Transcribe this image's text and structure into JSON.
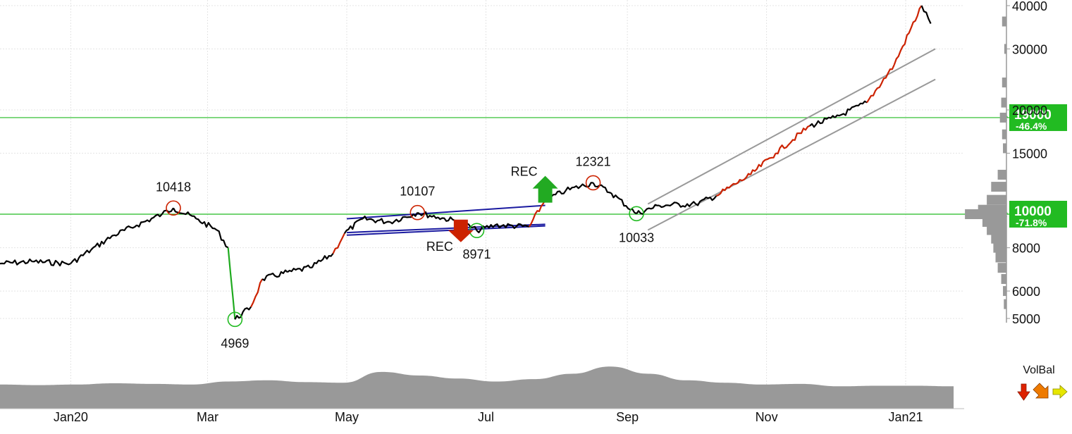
{
  "chart_data": {
    "type": "line",
    "title": "",
    "price_scale": "log",
    "ylim": [
      5000,
      40000
    ],
    "y_ticks": [
      {
        "label": "40000",
        "value": 40000
      },
      {
        "label": "30000",
        "value": 30000
      },
      {
        "label": "20000",
        "value": 20000
      },
      {
        "label": "15000",
        "value": 15000
      },
      {
        "label": "8000",
        "value": 8000
      },
      {
        "label": "6000",
        "value": 6000
      },
      {
        "label": "5000",
        "value": 5000
      }
    ],
    "x_ticks": [
      {
        "label": "Jan20",
        "date": "2020-01-01"
      },
      {
        "label": "Mar",
        "date": "2020-03-01"
      },
      {
        "label": "May",
        "date": "2020-05-01"
      },
      {
        "label": "Jul",
        "date": "2020-07-01"
      },
      {
        "label": "Sep",
        "date": "2020-09-01"
      },
      {
        "label": "Nov",
        "date": "2020-11-01"
      },
      {
        "label": "Jan21",
        "date": "2021-01-01"
      }
    ],
    "xlim": [
      "2019-12-01",
      "2021-01-22"
    ],
    "series": [
      {
        "color_up": "#cc2200",
        "color_down": "#1faa1f",
        "color_neutral": "#000000",
        "points": [
          [
            "2019-12-01",
            7200
          ],
          [
            "2019-12-15",
            7300
          ],
          [
            "2020-01-01",
            7200
          ],
          [
            "2020-01-10",
            7900
          ],
          [
            "2020-01-20",
            8700
          ],
          [
            "2020-01-30",
            9300
          ],
          [
            "2020-02-10",
            10000
          ],
          [
            "2020-02-15",
            10418
          ],
          [
            "2020-02-25",
            9700
          ],
          [
            "2020-03-05",
            9000
          ],
          [
            "2020-03-10",
            8000
          ],
          [
            "2020-03-13",
            4969
          ],
          [
            "2020-03-20",
            5400
          ],
          [
            "2020-03-25",
            6500
          ],
          [
            "2020-04-05",
            6800
          ],
          [
            "2020-04-15",
            7000
          ],
          [
            "2020-04-25",
            7700
          ],
          [
            "2020-04-30",
            8800
          ],
          [
            "2020-05-08",
            9700
          ],
          [
            "2020-05-20",
            9500
          ],
          [
            "2020-06-01",
            10107
          ],
          [
            "2020-06-10",
            9800
          ],
          [
            "2020-06-20",
            9500
          ],
          [
            "2020-06-27",
            8971
          ],
          [
            "2020-07-05",
            9300
          ],
          [
            "2020-07-20",
            9200
          ],
          [
            "2020-07-27",
            11000
          ],
          [
            "2020-08-05",
            11700
          ],
          [
            "2020-08-17",
            12321
          ],
          [
            "2020-08-25",
            11500
          ],
          [
            "2020-09-05",
            10033
          ],
          [
            "2020-09-15",
            10600
          ],
          [
            "2020-10-01",
            10700
          ],
          [
            "2020-10-10",
            11300
          ],
          [
            "2020-10-25",
            13000
          ],
          [
            "2020-11-05",
            15000
          ],
          [
            "2020-11-20",
            18000
          ],
          [
            "2020-12-01",
            19000
          ],
          [
            "2020-12-15",
            21000
          ],
          [
            "2020-12-27",
            27000
          ],
          [
            "2021-01-08",
            40000
          ],
          [
            "2021-01-12",
            35500
          ]
        ]
      }
    ],
    "horizontal_levels": [
      {
        "value": 19000,
        "label": "19000",
        "change": "-46.4%",
        "stars": "*",
        "color": "#22bb22"
      },
      {
        "value": 10000,
        "label": "10000",
        "change": "-71.8%",
        "stars": "***",
        "color": "#22bb22"
      }
    ],
    "annotations": [
      {
        "text": "10418",
        "date": "2020-02-15",
        "value": 10418,
        "marker": "peak"
      },
      {
        "text": "4969",
        "date": "2020-03-13",
        "value": 4969,
        "marker": "trough"
      },
      {
        "text": "10107",
        "date": "2020-06-01",
        "value": 10107,
        "marker": "peak"
      },
      {
        "text": "8971",
        "date": "2020-06-27",
        "value": 8971,
        "marker": "trough"
      },
      {
        "text": "12321",
        "date": "2020-08-17",
        "value": 12321,
        "marker": "peak"
      },
      {
        "text": "10033",
        "date": "2020-09-05",
        "value": 10033,
        "marker": "trough"
      }
    ],
    "signals": [
      {
        "text": "REC",
        "direction": "up",
        "date": "2020-07-27",
        "color": "#22aa22"
      },
      {
        "text": "REC",
        "direction": "down",
        "date": "2020-06-20",
        "color": "#cc2200"
      }
    ],
    "trendlines": [
      {
        "color": "#1a1aa0",
        "from": [
          "2020-05-01",
          9700
        ],
        "to": [
          "2020-07-27",
          10600
        ]
      },
      {
        "color": "#1a1aa0",
        "from": [
          "2020-05-01",
          8700
        ],
        "to": [
          "2020-07-27",
          9250
        ]
      },
      {
        "color": "#1a1aa0",
        "from": [
          "2020-05-01",
          8850
        ],
        "to": [
          "2020-07-27",
          9350
        ]
      },
      {
        "color": "#999999",
        "from": [
          "2020-09-10",
          10700
        ],
        "to": [
          "2021-01-14",
          30000
        ]
      },
      {
        "color": "#999999",
        "from": [
          "2020-09-10",
          9000
        ],
        "to": [
          "2021-01-14",
          24500
        ]
      }
    ],
    "volume_balance": {
      "label": "VolBal",
      "profile": [
        0.05,
        0.04,
        0.05,
        0.07,
        0.06,
        0.05,
        0.1,
        0.12,
        0.09,
        0.08,
        0.26,
        0.2,
        0.15,
        0.1,
        0.14,
        0.23,
        0.35,
        0.23,
        0.12,
        0.08,
        0.05,
        0.06,
        0.02,
        0.03,
        0.03,
        0.02
      ],
      "arrows": [
        {
          "name": "red-arrow-icon",
          "color": "#dd2200"
        },
        {
          "name": "orange-arrow-icon",
          "color": "#ee7a00"
        },
        {
          "name": "yellow-arrow-icon",
          "color": "#e6e600"
        }
      ]
    },
    "grid": true,
    "price_profile": [
      {
        "value": 36000,
        "size": 0.1
      },
      {
        "value": 30000,
        "size": 0.05
      },
      {
        "value": 24000,
        "size": 0.1
      },
      {
        "value": 21000,
        "size": 0.12
      },
      {
        "value": 19000,
        "size": 0.15
      },
      {
        "value": 17000,
        "size": 0.1
      },
      {
        "value": 15500,
        "size": 0.08
      },
      {
        "value": 13000,
        "size": 0.2
      },
      {
        "value": 12000,
        "size": 0.35
      },
      {
        "value": 11000,
        "size": 0.45
      },
      {
        "value": 10300,
        "size": 0.65
      },
      {
        "value": 10000,
        "size": 0.95
      },
      {
        "value": 9500,
        "size": 0.55
      },
      {
        "value": 9000,
        "size": 0.45
      },
      {
        "value": 8500,
        "size": 0.35
      },
      {
        "value": 8000,
        "size": 0.3
      },
      {
        "value": 7500,
        "size": 0.25
      },
      {
        "value": 7000,
        "size": 0.2
      },
      {
        "value": 6500,
        "size": 0.12
      },
      {
        "value": 6000,
        "size": 0.08
      },
      {
        "value": 5500,
        "size": 0.06
      }
    ]
  }
}
